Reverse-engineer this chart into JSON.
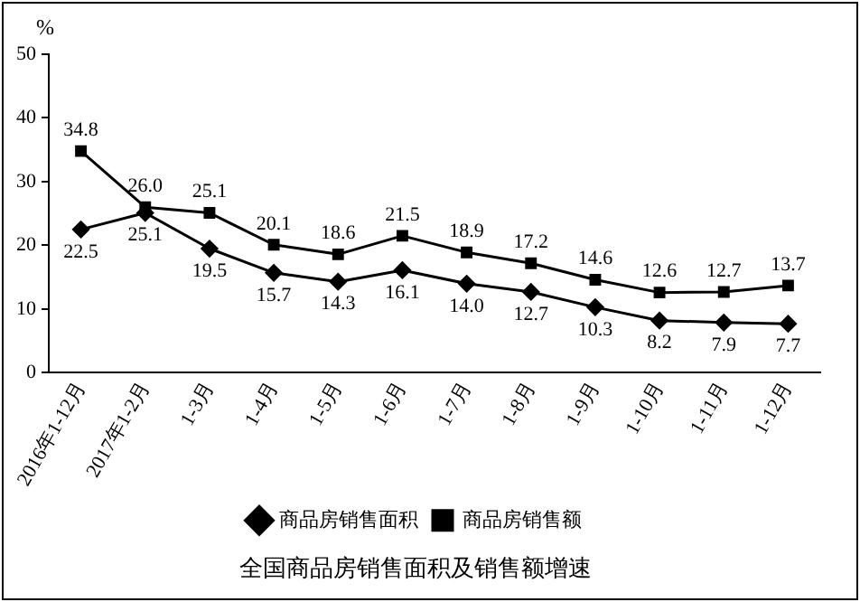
{
  "chart_data": {
    "type": "line",
    "title": "全国商品房销售面积及销售额增速",
    "ylabel": "%",
    "categories": [
      "2016年1-12月",
      "2017年1-2月",
      "1-3月",
      "1-4月",
      "1-5月",
      "1-6月",
      "1-7月",
      "1-8月",
      "1-9月",
      "1-10月",
      "1-11月",
      "1-12月"
    ],
    "series": [
      {
        "name": "商品房销售面积",
        "color": "#000000",
        "marker": "diamond",
        "values": [
          22.5,
          25.1,
          19.5,
          15.7,
          14.3,
          16.1,
          14.0,
          12.7,
          10.3,
          8.2,
          7.9,
          7.7
        ],
        "value_labels": [
          "22.5",
          "25.1",
          "19.5",
          "15.7",
          "14.3",
          "16.1",
          "14.0",
          "12.7",
          "10.3",
          "8.2",
          "7.9",
          "7.7"
        ]
      },
      {
        "name": "商品房销售额",
        "color": "#000000",
        "marker": "square",
        "values": [
          34.8,
          26.0,
          25.1,
          20.1,
          18.6,
          21.5,
          18.9,
          17.2,
          14.6,
          12.6,
          12.7,
          13.7
        ],
        "value_labels": [
          "34.8",
          "26.0",
          "25.1",
          "20.1",
          "18.6",
          "21.5",
          "18.9",
          "17.2",
          "14.6",
          "12.6",
          "12.7",
          "13.7"
        ]
      }
    ],
    "ylim": [
      0,
      50
    ],
    "yticks": [
      0,
      10,
      20,
      30,
      40,
      50
    ],
    "grid": false,
    "legend": "bottom",
    "line_style": "solid"
  }
}
